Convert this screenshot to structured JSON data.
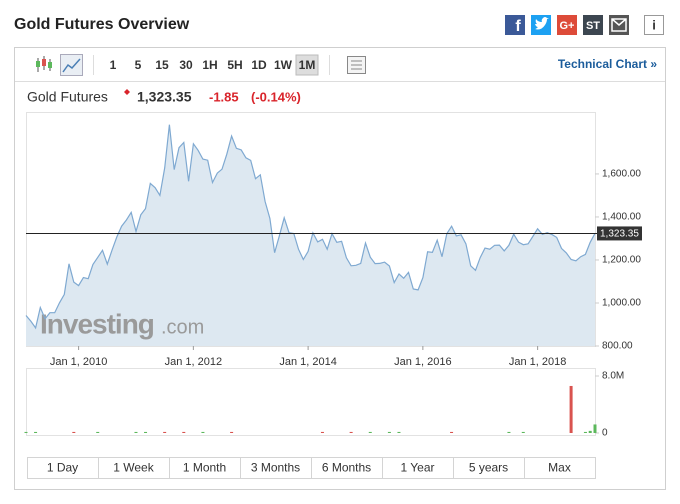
{
  "header": {
    "title": "Gold Futures Overview"
  },
  "share": {
    "facebook": "f",
    "google": "G+",
    "stocktwits": "ST",
    "info": "i"
  },
  "toolbar": {
    "intervals": [
      "1",
      "5",
      "15",
      "30",
      "1H",
      "5H",
      "1D",
      "1W",
      "1M"
    ],
    "selected": "1M",
    "technical_link": "Technical Chart »"
  },
  "quote": {
    "name": "Gold Futures",
    "last": "1,323.35",
    "change": "-1.85",
    "change_pct": "(-0.14%)"
  },
  "watermark": {
    "brand": "Investing",
    "suffix": ".com"
  },
  "ranges": [
    "1 Day",
    "1 Week",
    "1 Month",
    "3 Months",
    "6 Months",
    "1 Year",
    "5 years",
    "Max"
  ],
  "chart_data": [
    {
      "type": "area",
      "x": [
        "2009-02",
        "2009-03",
        "2009-04",
        "2009-05",
        "2009-06",
        "2009-07",
        "2009-08",
        "2009-09",
        "2009-10",
        "2009-11",
        "2009-12",
        "2010-01",
        "2010-02",
        "2010-03",
        "2010-04",
        "2010-05",
        "2010-06",
        "2010-07",
        "2010-08",
        "2010-09",
        "2010-10",
        "2010-11",
        "2010-12",
        "2011-01",
        "2011-02",
        "2011-03",
        "2011-04",
        "2011-05",
        "2011-06",
        "2011-07",
        "2011-08",
        "2011-09",
        "2011-10",
        "2011-11",
        "2011-12",
        "2012-01",
        "2012-02",
        "2012-03",
        "2012-04",
        "2012-05",
        "2012-06",
        "2012-07",
        "2012-08",
        "2012-09",
        "2012-10",
        "2012-11",
        "2012-12",
        "2013-01",
        "2013-02",
        "2013-03",
        "2013-04",
        "2013-05",
        "2013-06",
        "2013-07",
        "2013-08",
        "2013-09",
        "2013-10",
        "2013-11",
        "2013-12",
        "2014-01",
        "2014-02",
        "2014-03",
        "2014-04",
        "2014-05",
        "2014-06",
        "2014-07",
        "2014-08",
        "2014-09",
        "2014-10",
        "2014-11",
        "2014-12",
        "2015-01",
        "2015-02",
        "2015-03",
        "2015-04",
        "2015-05",
        "2015-06",
        "2015-07",
        "2015-08",
        "2015-09",
        "2015-10",
        "2015-11",
        "2015-12",
        "2016-01",
        "2016-02",
        "2016-03",
        "2016-04",
        "2016-05",
        "2016-06",
        "2016-07",
        "2016-08",
        "2016-09",
        "2016-10",
        "2016-11",
        "2016-12",
        "2017-01",
        "2017-02",
        "2017-03",
        "2017-04",
        "2017-05",
        "2017-06",
        "2017-07",
        "2017-08",
        "2017-09",
        "2017-10",
        "2017-11",
        "2017-12",
        "2018-01",
        "2018-02",
        "2018-03",
        "2018-04",
        "2018-05",
        "2018-06",
        "2018-07",
        "2018-08",
        "2018-09",
        "2018-10",
        "2018-11",
        "2018-12",
        "2019-01"
      ],
      "series": [
        {
          "name": "Gold Futures",
          "color": "#7fa9d1",
          "fill": "#dde8f1",
          "values": [
            942,
            916,
            884,
            979,
            927,
            955,
            955,
            1001,
            1040,
            1182,
            1097,
            1081,
            1118,
            1113,
            1179,
            1212,
            1245,
            1181,
            1247,
            1307,
            1357,
            1386,
            1421,
            1333,
            1410,
            1439,
            1556,
            1536,
            1500,
            1628,
            1829,
            1620,
            1722,
            1746,
            1566,
            1740,
            1710,
            1669,
            1664,
            1560,
            1604,
            1622,
            1692,
            1776,
            1719,
            1712,
            1675,
            1663,
            1578,
            1596,
            1472,
            1393,
            1234,
            1313,
            1396,
            1327,
            1323,
            1250,
            1202,
            1240,
            1326,
            1284,
            1296,
            1250,
            1322,
            1282,
            1287,
            1210,
            1173,
            1175,
            1184,
            1279,
            1213,
            1183,
            1184,
            1190,
            1172,
            1095,
            1135,
            1115,
            1142,
            1065,
            1061,
            1118,
            1238,
            1235,
            1292,
            1215,
            1322,
            1357,
            1312,
            1317,
            1275,
            1173,
            1152,
            1211,
            1255,
            1250,
            1268,
            1269,
            1242,
            1268,
            1320,
            1283,
            1271,
            1275,
            1309,
            1345,
            1319,
            1327,
            1318,
            1305,
            1254,
            1233,
            1202,
            1196,
            1215,
            1226,
            1282,
            1323.35
          ]
        }
      ],
      "xlim": [
        "2009-02",
        "2019-01"
      ],
      "xticks": [
        {
          "value": "2010-01",
          "label": "Jan 1, 2010"
        },
        {
          "value": "2012-01",
          "label": "Jan 1, 2012"
        },
        {
          "value": "2014-01",
          "label": "Jan 1, 2014"
        },
        {
          "value": "2016-01",
          "label": "Jan 1, 2016"
        },
        {
          "value": "2018-01",
          "label": "Jan 1, 2018"
        }
      ],
      "ylim": [
        800,
        1888
      ],
      "yticks": [
        {
          "value": 800,
          "label": "800.00"
        },
        {
          "value": 1000,
          "label": "1,000.00"
        },
        {
          "value": 1200,
          "label": "1,200.00"
        },
        {
          "value": 1400,
          "label": "1,400.00"
        },
        {
          "value": 1600,
          "label": "1,600.00"
        }
      ],
      "price_line": {
        "value": 1323.35,
        "label": "1,323.35"
      },
      "grid": false
    },
    {
      "type": "bar",
      "x": [
        "2009-02",
        "2009-04",
        "2009-12",
        "2010-05",
        "2011-01",
        "2011-03",
        "2011-07",
        "2011-11",
        "2012-03",
        "2012-09",
        "2014-04",
        "2014-10",
        "2015-02",
        "2015-06",
        "2015-08",
        "2016-07",
        "2017-07",
        "2017-10",
        "2018-08",
        "2018-11",
        "2018-12",
        "2019-01"
      ],
      "values": [
        150000,
        150000,
        150000,
        150000,
        150000,
        150000,
        150000,
        150000,
        150000,
        150000,
        150000,
        150000,
        150000,
        150000,
        150000,
        150000,
        150000,
        150000,
        6600000,
        150000,
        300000,
        1200000
      ],
      "colors": [
        "#5cb85c",
        "#5cb85c",
        "#d9534f",
        "#5cb85c",
        "#5cb85c",
        "#5cb85c",
        "#d9534f",
        "#d9534f",
        "#5cb85c",
        "#d9534f",
        "#d9534f",
        "#d9534f",
        "#5cb85c",
        "#5cb85c",
        "#5cb85c",
        "#d9534f",
        "#5cb85c",
        "#5cb85c",
        "#d9534f",
        "#5cb85c",
        "#5cb85c",
        "#5cb85c"
      ],
      "xlim": [
        "2009-02",
        "2019-01"
      ],
      "ylim": [
        0,
        8000000
      ],
      "yticks": [
        0,
        {
          "value": 8000000,
          "label": "8.0M"
        }
      ]
    }
  ]
}
